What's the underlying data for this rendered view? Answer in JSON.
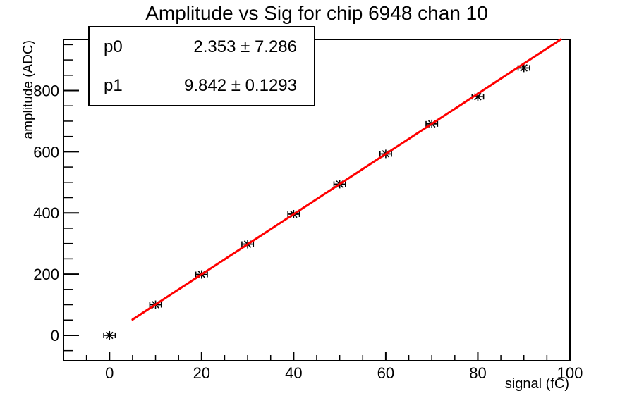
{
  "title": "Amplitude vs Sig for chip 6948 chan 10",
  "stats": {
    "rows": [
      {
        "name": "p0",
        "value": "2.353 ± 7.286"
      },
      {
        "name": "p1",
        "value": "9.842 ± 0.1293"
      }
    ]
  },
  "chart_data": {
    "type": "scatter",
    "title": "Amplitude vs Sig for chip 6948 chan 10",
    "xlabel": "signal (fC)",
    "ylabel": "amplitude (ADC)",
    "xlim": [
      -10,
      100
    ],
    "ylim": [
      -83,
      967
    ],
    "x_ticks": {
      "major": [
        0,
        20,
        40,
        60,
        80,
        100
      ],
      "minor_step": 5
    },
    "y_ticks": {
      "major": [
        0,
        200,
        400,
        600,
        800
      ],
      "minor_step": 50
    },
    "grid": false,
    "legend": false,
    "points": {
      "x": [
        0,
        10,
        20,
        30,
        40,
        50,
        60,
        70,
        80,
        90
      ],
      "y": [
        0,
        100,
        199,
        298,
        396,
        494,
        593,
        691,
        780,
        874
      ],
      "x_err": 1.25,
      "marker": "asterisk-star-with-x-error-bars"
    },
    "fit": {
      "label_p0": "p0",
      "p0": 2.353,
      "p0_err": 7.286,
      "label_p1": "p1",
      "p1": 9.842,
      "p1_err": 0.1293,
      "x_start": 5,
      "x_end": 100
    },
    "colors": {
      "fit_line": "#ff0000",
      "marker": "#000000",
      "axes": "#000000",
      "text": "#000000",
      "background": "#ffffff"
    }
  }
}
